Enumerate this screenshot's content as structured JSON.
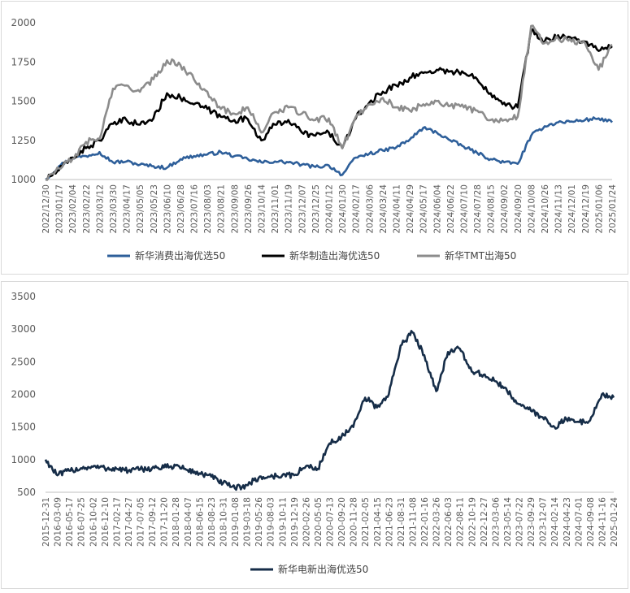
{
  "chart_data": [
    {
      "type": "line",
      "title": "",
      "xlabel": "",
      "ylabel": "",
      "ylim": [
        1000,
        2000
      ],
      "yticks": [
        "2000",
        "1750",
        "1500",
        "1250",
        "1000"
      ],
      "grid": false,
      "legend_position": "bottom",
      "categories": [
        "2022/12/30",
        "2023/01/17",
        "2023/02/04",
        "2023/02/22",
        "2023/03/12",
        "2023/03/30",
        "2023/04/17",
        "2023/05/05",
        "2023/05/23",
        "2023/06/10",
        "2023/06/28",
        "2023/07/16",
        "2023/08/03",
        "2023/08/21",
        "2023/09/08",
        "2023/09/26",
        "2023/10/14",
        "2023/11/01",
        "2023/11/19",
        "2023/12/07",
        "2023/12/25",
        "2024/01/12",
        "2024/01/30",
        "2024/02/17",
        "2024/03/06",
        "2024/03/24",
        "2024/04/11",
        "2024/04/29",
        "2024/05/17",
        "2024/06/04",
        "2024/06/22",
        "2024/07/10",
        "2024/07/28",
        "2024/08/15",
        "2024/09/02",
        "2024/09/20",
        "2024/10/08",
        "2024/10/26",
        "2024/11/13",
        "2024/12/01",
        "2024/12/19",
        "2025/01/06",
        "2025/01/24"
      ],
      "series": [
        {
          "name": "新华消费出海优选50",
          "color": "#2e5f9a",
          "values": [
            1000,
            1085,
            1140,
            1150,
            1175,
            1110,
            1115,
            1095,
            1085,
            1075,
            1130,
            1150,
            1160,
            1175,
            1150,
            1130,
            1110,
            1115,
            1110,
            1095,
            1080,
            1090,
            1030,
            1140,
            1165,
            1185,
            1205,
            1255,
            1330,
            1300,
            1250,
            1210,
            1170,
            1130,
            1110,
            1100,
            1280,
            1340,
            1365,
            1370,
            1380,
            1390,
            1365
          ]
        },
        {
          "name": "新华制造出海优选50",
          "color": "#000000",
          "values": [
            1000,
            1060,
            1140,
            1200,
            1250,
            1355,
            1380,
            1350,
            1390,
            1550,
            1520,
            1480,
            1450,
            1400,
            1380,
            1385,
            1250,
            1350,
            1380,
            1300,
            1280,
            1300,
            1200,
            1390,
            1490,
            1560,
            1600,
            1650,
            1680,
            1700,
            1690,
            1680,
            1640,
            1550,
            1490,
            1460,
            1950,
            1880,
            1920,
            1900,
            1880,
            1820,
            1850
          ]
        },
        {
          "name": "新华TMT出海50",
          "color": "#8c8c8c",
          "values": [
            1000,
            1070,
            1130,
            1240,
            1260,
            1580,
            1600,
            1560,
            1640,
            1760,
            1730,
            1640,
            1560,
            1450,
            1420,
            1460,
            1300,
            1430,
            1460,
            1420,
            1380,
            1390,
            1200,
            1400,
            1480,
            1520,
            1460,
            1440,
            1480,
            1500,
            1470,
            1460,
            1440,
            1380,
            1380,
            1400,
            1980,
            1870,
            1900,
            1880,
            1870,
            1700,
            1860
          ]
        }
      ]
    },
    {
      "type": "line",
      "title": "",
      "xlabel": "",
      "ylabel": "",
      "ylim": [
        500,
        3500
      ],
      "yticks": [
        "3500",
        "3000",
        "2500",
        "2000",
        "1500",
        "1000",
        "500"
      ],
      "grid": false,
      "legend_position": "bottom",
      "categories": [
        "2015-12-31",
        "2016-03-09",
        "2016-05-17",
        "2016-07-25",
        "2016-10-02",
        "2016-12-10",
        "2017-02-17",
        "2017-04-27",
        "2017-07-05",
        "2017-09-12",
        "2017-11-20",
        "2018-01-28",
        "2018-04-07",
        "2018-06-15",
        "2018-08-23",
        "2018-10-31",
        "2019-01-08",
        "2019-03-18",
        "2019-05-26",
        "2019-08-03",
        "2019-10-11",
        "2019-12-19",
        "2020-02-26",
        "2020-05-05",
        "2020-07-13",
        "2020-09-20",
        "2020-11-28",
        "2021-02-05",
        "2021-04-15",
        "2021-06-23",
        "2021-08-31",
        "2021-11-08",
        "2022-01-16",
        "2022-03-26",
        "2022-06-03",
        "2022-08-11",
        "2022-10-19",
        "2022-12-27",
        "2023-03-06",
        "2023-05-14",
        "2023-07-22",
        "2023-09-29",
        "2023-12-07",
        "2024-02-14",
        "2024-04-23",
        "2024-07-01",
        "2024-09-08",
        "2024-11-16",
        "2025-01-24"
      ],
      "series": [
        {
          "name": "新华电新出海优选50",
          "color": "#162d48",
          "values": [
            1000,
            760,
            830,
            870,
            890,
            870,
            860,
            830,
            850,
            870,
            880,
            910,
            840,
            790,
            740,
            640,
            560,
            610,
            720,
            740,
            760,
            760,
            900,
            860,
            1250,
            1350,
            1500,
            1950,
            1800,
            2000,
            2750,
            2950,
            2600,
            2050,
            2650,
            2700,
            2350,
            2300,
            2200,
            2050,
            1850,
            1750,
            1650,
            1500,
            1620,
            1580,
            1600,
            2000,
            1950
          ]
        }
      ]
    }
  ]
}
